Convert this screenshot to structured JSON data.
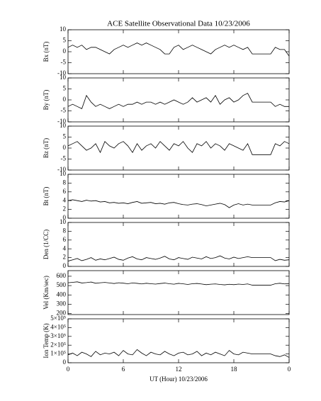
{
  "chart_data": [
    {
      "type": "line",
      "title": "ACE Satellite Observational Data   10/23/2006",
      "ylabel": "Bx (nT)",
      "color": "#000000",
      "x": [
        0,
        0.5,
        1,
        1.5,
        2,
        2.5,
        3,
        3.5,
        4,
        4.5,
        5,
        5.5,
        6,
        6.5,
        7,
        7.5,
        8,
        8.5,
        9,
        9.5,
        10,
        10.5,
        11,
        11.5,
        12,
        12.5,
        13,
        13.5,
        14,
        14.5,
        15,
        15.5,
        16,
        16.5,
        17,
        17.5,
        18,
        18.5,
        19,
        19.5,
        20,
        20.5,
        21,
        21.5,
        22,
        22.5,
        23,
        23.5,
        24
      ],
      "values": [
        2,
        3,
        2,
        3,
        1,
        2,
        2,
        1,
        0,
        -1,
        1,
        2,
        3,
        2,
        3,
        4,
        3,
        4,
        3,
        2,
        1,
        -1,
        -1,
        2,
        3,
        1,
        2,
        3,
        2,
        1,
        0,
        -1,
        1,
        2,
        3,
        2,
        3,
        2,
        1,
        2,
        -1,
        -1,
        -1,
        -1,
        -1,
        2,
        1,
        1,
        -2
      ],
      "xlim": [
        0,
        24
      ],
      "ylim": [
        -10,
        10
      ],
      "yticks": [
        -10,
        -5,
        0,
        5,
        10
      ]
    },
    {
      "type": "line",
      "ylabel": "By (nT)",
      "color": "#000000",
      "x": [
        0,
        0.5,
        1,
        1.5,
        2,
        2.5,
        3,
        3.5,
        4,
        4.5,
        5,
        5.5,
        6,
        6.5,
        7,
        7.5,
        8,
        8.5,
        9,
        9.5,
        10,
        10.5,
        11,
        11.5,
        12,
        12.5,
        13,
        13.5,
        14,
        14.5,
        15,
        15.5,
        16,
        16.5,
        17,
        17.5,
        18,
        18.5,
        19,
        19.5,
        20,
        20.5,
        21,
        21.5,
        22,
        22.5,
        23,
        23.5,
        24
      ],
      "values": [
        -3,
        -2,
        -3,
        -4,
        2,
        -1,
        -3,
        -2,
        -3,
        -4,
        -3,
        -2,
        -3,
        -2,
        -2,
        -1,
        -2,
        -1,
        -1,
        -2,
        -1,
        -2,
        -1,
        0,
        -1,
        -2,
        -1,
        1,
        -1,
        0,
        1,
        -1,
        2,
        -2,
        0,
        1,
        -1,
        0,
        2,
        3,
        -1,
        -1,
        -1,
        -1,
        -1,
        -3,
        -2,
        -3,
        -3
      ],
      "xlim": [
        0,
        24
      ],
      "ylim": [
        -10,
        10
      ],
      "yticks": [
        -10,
        -5,
        0,
        5,
        10
      ]
    },
    {
      "type": "line",
      "ylabel": "Bz (nT)",
      "color": "#000000",
      "x": [
        0,
        0.5,
        1,
        1.5,
        2,
        2.5,
        3,
        3.5,
        4,
        4.5,
        5,
        5.5,
        6,
        6.5,
        7,
        7.5,
        8,
        8.5,
        9,
        9.5,
        10,
        10.5,
        11,
        11.5,
        12,
        12.5,
        13,
        13.5,
        14,
        14.5,
        15,
        15.5,
        16,
        16.5,
        17,
        17.5,
        18,
        18.5,
        19,
        19.5,
        20,
        20.5,
        21,
        21.5,
        22,
        22.5,
        23,
        23.5,
        24
      ],
      "values": [
        1,
        2,
        3,
        1,
        -1,
        0,
        2,
        -2,
        3,
        1,
        0,
        2,
        3,
        1,
        -2,
        2,
        -1,
        1,
        2,
        0,
        3,
        1,
        -1,
        2,
        1,
        3,
        0,
        -2,
        2,
        1,
        3,
        0,
        2,
        1,
        -1,
        2,
        1,
        0,
        -1,
        2,
        -3,
        -3,
        -3,
        -3,
        -3,
        2,
        1,
        3,
        2
      ],
      "xlim": [
        0,
        24
      ],
      "ylim": [
        -10,
        10
      ],
      "yticks": [
        -10,
        -5,
        0,
        5,
        10
      ]
    },
    {
      "type": "line",
      "ylabel": "Bt (nT)",
      "color": "#000000",
      "x": [
        0,
        0.5,
        1,
        1.5,
        2,
        2.5,
        3,
        3.5,
        4,
        4.5,
        5,
        5.5,
        6,
        6.5,
        7,
        7.5,
        8,
        8.5,
        9,
        9.5,
        10,
        10.5,
        11,
        11.5,
        12,
        12.5,
        13,
        13.5,
        14,
        14.5,
        15,
        15.5,
        16,
        16.5,
        17,
        17.5,
        18,
        18.5,
        19,
        19.5,
        20,
        20.5,
        21,
        21.5,
        22,
        22.5,
        23,
        23.5,
        24
      ],
      "values": [
        4,
        4.2,
        4,
        3.8,
        4.1,
        3.9,
        4,
        3.7,
        3.8,
        3.5,
        3.6,
        3.4,
        3.5,
        3.3,
        3.6,
        3.8,
        3.4,
        3.5,
        3.6,
        3.3,
        3.4,
        3.2,
        3.5,
        3.6,
        3.3,
        3.1,
        3,
        3.2,
        3.3,
        3.1,
        2.8,
        3,
        3.2,
        3.4,
        3.1,
        2.4,
        3,
        3.3,
        3,
        3.2,
        3,
        3,
        3,
        3,
        3,
        3.5,
        3.8,
        3.7,
        4
      ],
      "xlim": [
        0,
        24
      ],
      "ylim": [
        0,
        10
      ],
      "yticks": [
        0,
        2,
        4,
        6,
        8,
        10
      ]
    },
    {
      "type": "line",
      "ylabel": "Den (1/CC)",
      "color": "#000000",
      "x": [
        0,
        0.5,
        1,
        1.5,
        2,
        2.5,
        3,
        3.5,
        4,
        4.5,
        5,
        5.5,
        6,
        6.5,
        7,
        7.5,
        8,
        8.5,
        9,
        9.5,
        10,
        10.5,
        11,
        11.5,
        12,
        12.5,
        13,
        13.5,
        14,
        14.5,
        15,
        15.5,
        16,
        16.5,
        17,
        17.5,
        18,
        18.5,
        19,
        19.5,
        20,
        20.5,
        21,
        21.5,
        22,
        22.5,
        23,
        23.5,
        24
      ],
      "values": [
        1.2,
        1.5,
        1.8,
        1.3,
        1.6,
        2,
        1.4,
        1.7,
        1.5,
        1.8,
        2.1,
        1.6,
        1.4,
        1.9,
        2.2,
        1.7,
        1.5,
        2,
        1.8,
        1.6,
        1.9,
        2.3,
        1.7,
        1.5,
        2,
        1.8,
        1.6,
        2.1,
        1.9,
        1.7,
        2.2,
        1.8,
        2,
        2.4,
        1.9,
        1.7,
        2.1,
        1.8,
        2,
        2.2,
        2,
        2,
        2,
        2,
        2,
        1.3,
        1.6,
        1.4,
        1.5
      ],
      "xlim": [
        0,
        24
      ],
      "ylim": [
        0,
        10
      ],
      "yticks": [
        0,
        2,
        4,
        6,
        8,
        10
      ]
    },
    {
      "type": "line",
      "ylabel": "Vel (Km/sec)",
      "color": "#000000",
      "x": [
        0,
        0.5,
        1,
        1.5,
        2,
        2.5,
        3,
        3.5,
        4,
        4.5,
        5,
        5.5,
        6,
        6.5,
        7,
        7.5,
        8,
        8.5,
        9,
        9.5,
        10,
        10.5,
        11,
        11.5,
        12,
        12.5,
        13,
        13.5,
        14,
        14.5,
        15,
        15.5,
        16,
        16.5,
        17,
        17.5,
        18,
        18.5,
        19,
        19.5,
        20,
        20.5,
        21,
        21.5,
        22,
        22.5,
        23,
        23.5,
        24
      ],
      "values": [
        530,
        535,
        540,
        528,
        532,
        538,
        525,
        530,
        534,
        528,
        522,
        530,
        526,
        520,
        528,
        524,
        518,
        525,
        520,
        516,
        522,
        527,
        520,
        515,
        524,
        519,
        512,
        520,
        523,
        517,
        510,
        515,
        518,
        512,
        508,
        514,
        510,
        516,
        512,
        518,
        505,
        505,
        505,
        505,
        505,
        520,
        525,
        518,
        522
      ],
      "xlim": [
        0,
        24
      ],
      "ylim": [
        190,
        660
      ],
      "yticks": [
        200,
        300,
        400,
        500,
        600
      ]
    },
    {
      "type": "line",
      "ylabel": "Ion Temp (K)",
      "xlabel": "UT (Hour)   10/23/2006",
      "color": "#000000",
      "x": [
        0,
        0.5,
        1,
        1.5,
        2,
        2.5,
        3,
        3.5,
        4,
        4.5,
        5,
        5.5,
        6,
        6.5,
        7,
        7.5,
        8,
        8.5,
        9,
        9.5,
        10,
        10.5,
        11,
        11.5,
        12,
        12.5,
        13,
        13.5,
        14,
        14.5,
        15,
        15.5,
        16,
        16.5,
        17,
        17.5,
        18,
        18.5,
        19,
        19.5,
        20,
        20.5,
        21,
        21.5,
        22,
        22.5,
        23,
        23.5,
        24
      ],
      "values": [
        90000,
        110000,
        80000,
        120000,
        100000,
        70000,
        130000,
        90000,
        110000,
        100000,
        120000,
        80000,
        140000,
        100000,
        90000,
        150000,
        110000,
        80000,
        120000,
        100000,
        90000,
        130000,
        100000,
        80000,
        110000,
        120000,
        90000,
        100000,
        130000,
        80000,
        110000,
        90000,
        120000,
        100000,
        80000,
        140000,
        100000,
        90000,
        120000,
        110000,
        100000,
        100000,
        100000,
        100000,
        100000,
        80000,
        70000,
        90000,
        60000
      ],
      "xlim": [
        0,
        24
      ],
      "ylim": [
        0,
        500000
      ],
      "yticks": [
        0,
        {
          "value": 100000,
          "label": "1×10⁵"
        },
        {
          "value": 200000,
          "label": "2×10⁵"
        },
        {
          "value": 300000,
          "label": "3×10⁵"
        },
        {
          "value": 400000,
          "label": "4×10⁵"
        },
        {
          "value": 500000,
          "label": "5×10⁵"
        }
      ],
      "xticks": [
        0,
        6,
        12,
        18,
        {
          "value": 24,
          "label": "0"
        }
      ]
    }
  ]
}
